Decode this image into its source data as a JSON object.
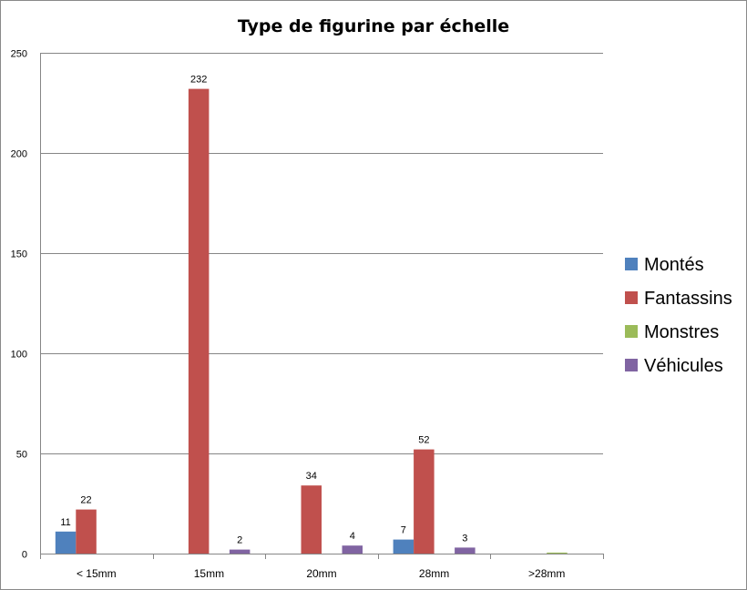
{
  "chart_data": {
    "type": "bar",
    "title": "Type de figurine par échelle",
    "xlabel": "",
    "ylabel": "",
    "categories": [
      "< 15mm",
      "15mm",
      "20mm",
      "28mm",
      ">28mm"
    ],
    "ylim": [
      0,
      250
    ],
    "yticks": [
      0,
      50,
      100,
      150,
      200,
      250
    ],
    "grid": true,
    "legend_position": "right",
    "series": [
      {
        "name": "Montés",
        "color": "#4F81BD",
        "values": [
          11,
          0,
          0,
          7,
          0
        ],
        "labels": [
          "11",
          "",
          "",
          "7",
          ""
        ]
      },
      {
        "name": "Fantassins",
        "color": "#C0504D",
        "values": [
          22,
          232,
          34,
          52,
          0
        ],
        "labels": [
          "22",
          "232",
          "34",
          "52",
          ""
        ]
      },
      {
        "name": "Monstres",
        "color": "#9BBB59",
        "values": [
          0,
          0,
          0,
          0,
          0.5
        ],
        "labels": [
          "",
          "",
          "",
          "",
          ""
        ]
      },
      {
        "name": "Véhicules",
        "color": "#8064A2",
        "values": [
          0,
          2,
          4,
          3,
          0
        ],
        "labels": [
          "",
          "2",
          "4",
          "3",
          ""
        ]
      }
    ]
  }
}
